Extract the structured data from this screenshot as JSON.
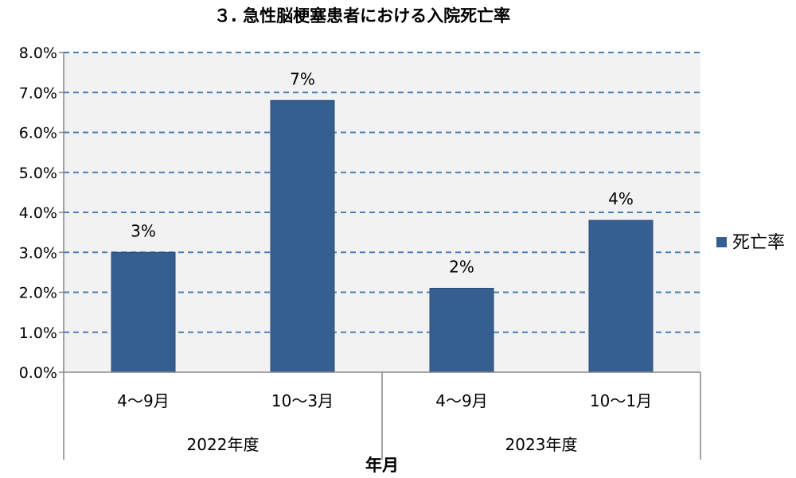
{
  "chart_data": {
    "type": "bar",
    "title": "３. 急性脳梗塞患者における入院死亡率",
    "xlabel": "年月",
    "ylabel": "",
    "ylim": [
      0,
      0.08
    ],
    "yticks": [
      "0.0%",
      "1.0%",
      "2.0%",
      "3.0%",
      "4.0%",
      "5.0%",
      "6.0%",
      "7.0%",
      "8.0%"
    ],
    "categories": [
      "4～9月",
      "10～3月",
      "4～9月",
      "10～1月"
    ],
    "groups": [
      {
        "label": "2022年度",
        "span": 2
      },
      {
        "label": "2023年度",
        "span": 2
      }
    ],
    "series": [
      {
        "name": "死亡率",
        "values": [
          0.03,
          0.068,
          0.021,
          0.038
        ],
        "data_labels": [
          "3%",
          "7%",
          "2%",
          "4%"
        ]
      }
    ],
    "grid": true,
    "legend_position": "right"
  },
  "colors": {
    "bar": "#355F91",
    "bar_stroke": "#2A4C75",
    "plot_background": "#F2F2F2",
    "gridline": "#4A7EBB",
    "axis": "#868686"
  }
}
